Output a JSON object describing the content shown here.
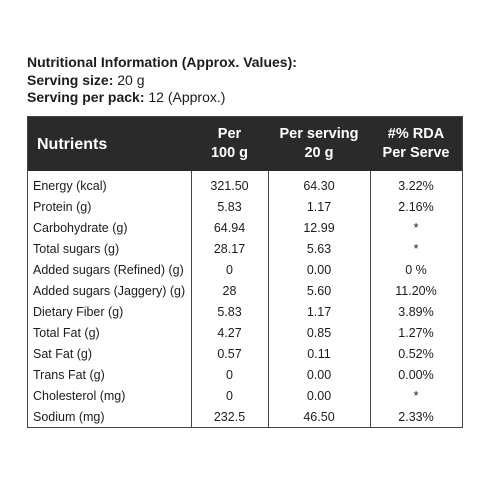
{
  "header": {
    "title": "Nutritional Information (Approx. Values):",
    "serving_size_label": "Serving size:",
    "serving_size_value": "20 g",
    "serving_pack_label": "Serving per pack:",
    "serving_pack_value": "12 (Approx.)"
  },
  "table": {
    "columns": [
      {
        "line1": "Nutrients",
        "line2": ""
      },
      {
        "line1": "Per",
        "line2": "100 g"
      },
      {
        "line1": "Per serving",
        "line2": "20 g"
      },
      {
        "line1": "#% RDA",
        "line2": "Per Serve"
      }
    ],
    "rows": [
      {
        "name": "Energy (kcal)",
        "per100": "321.50",
        "perserving": "64.30",
        "rda": "3.22%"
      },
      {
        "name": "Protein (g)",
        "per100": "5.83",
        "perserving": "1.17",
        "rda": "2.16%"
      },
      {
        "name": "Carbohydrate (g)",
        "per100": "64.94",
        "perserving": "12.99",
        "rda": "*"
      },
      {
        "name": "Total sugars (g)",
        "per100": "28.17",
        "perserving": "5.63",
        "rda": "*"
      },
      {
        "name": "Added sugars (Refined) (g)",
        "per100": "0",
        "perserving": "0.00",
        "rda": "0 %"
      },
      {
        "name": "Added sugars (Jaggery) (g)",
        "per100": "28",
        "perserving": "5.60",
        "rda": "11.20%"
      },
      {
        "name": "Dietary Fiber (g)",
        "per100": "5.83",
        "perserving": "1.17",
        "rda": "3.89%"
      },
      {
        "name": "Total Fat (g)",
        "per100": "4.27",
        "perserving": "0.85",
        "rda": "1.27%"
      },
      {
        "name": "Sat Fat (g)",
        "per100": "0.57",
        "perserving": "0.11",
        "rda": "0.52%"
      },
      {
        "name": "Trans Fat (g)",
        "per100": "0",
        "perserving": "0.00",
        "rda": "0.00%"
      },
      {
        "name": "Cholesterol (mg)",
        "per100": "0",
        "perserving": "0.00",
        "rda": "*"
      },
      {
        "name": "Sodium (mg)",
        "per100": "232.5",
        "perserving": "46.50",
        "rda": "2.33%"
      }
    ]
  },
  "colors": {
    "header_bg": "#2a2a2a",
    "header_text": "#ffffff",
    "border": "#444444",
    "text": "#1c1c1c"
  }
}
